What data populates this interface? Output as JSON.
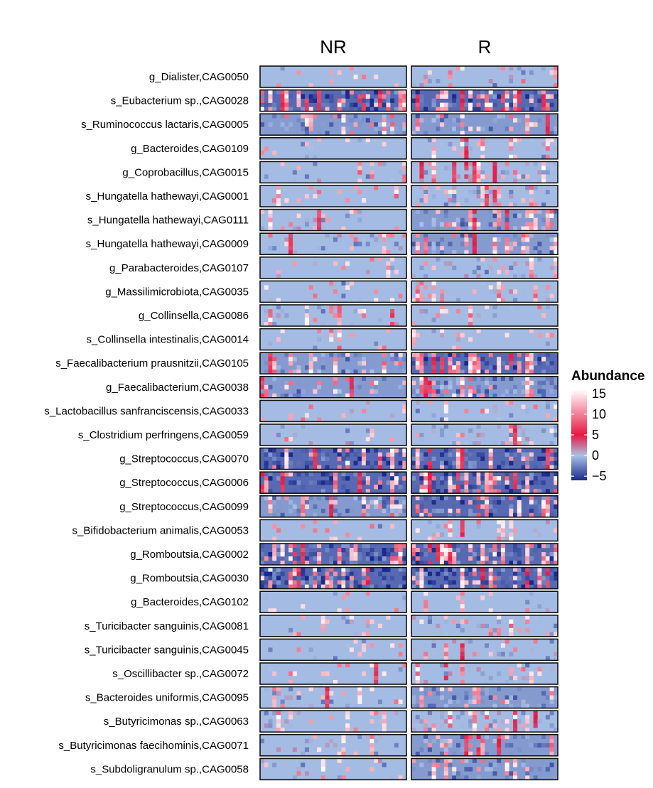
{
  "chart_data": {
    "type": "heatmap",
    "groups": [
      "NR",
      "R"
    ],
    "rows": [
      "g_Dialister,CAG0050",
      "s_Eubacterium sp.,CAG0028",
      "s_Ruminococcus lactaris,CAG0005",
      "g_Bacteroides,CAG0109",
      "g_Coprobacillus,CAG0015",
      "s_Hungatella hathewayi,CAG0001",
      "s_Hungatella hathewayi,CAG0111",
      "s_Hungatella hathewayi,CAG0009",
      "g_Parabacteroides,CAG0107",
      "g_Massilimicrobiota,CAG0035",
      "g_Collinsella,CAG0086",
      "s_Collinsella intestinalis,CAG0014",
      "s_Faecalibacterium prausnitzii,CAG0105",
      "g_Faecalibacterium,CAG0038",
      "s_Lactobacillus sanfranciscensis,CAG0033",
      "s_Clostridium perfringens,CAG0059",
      "g_Streptococcus,CAG0070",
      "g_Streptococcus,CAG0006",
      "g_Streptococcus,CAG0099",
      "s_Bifidobacterium animalis,CAG0053",
      "g_Romboutsia,CAG0002",
      "g_Romboutsia,CAG0030",
      "g_Bacteroides,CAG0102",
      "s_Turicibacter sanguinis,CAG0081",
      "s_Turicibacter sanguinis,CAG0045",
      "s_Oscillibacter sp.,CAG0072",
      "s_Bacteroides uniformis,CAG0095",
      "s_Butyricimonas sp.,CAG0063",
      "s_Butyricimonas faecihominis,CAG0071",
      "s_Subdoligranulum sp.,CAG0058"
    ],
    "row_density": [
      [
        0.02,
        0.12
      ],
      [
        0.7,
        0.65
      ],
      [
        0.4,
        0.45
      ],
      [
        0.03,
        0.18
      ],
      [
        0.1,
        0.3
      ],
      [
        0.05,
        0.3
      ],
      [
        0.15,
        0.4
      ],
      [
        0.2,
        0.45
      ],
      [
        0.06,
        0.25
      ],
      [
        0.03,
        0.2
      ],
      [
        0.15,
        0.05
      ],
      [
        0.08,
        0.02
      ],
      [
        0.45,
        0.6
      ],
      [
        0.4,
        0.55
      ],
      [
        0.02,
        0.1
      ],
      [
        0.05,
        0.25
      ],
      [
        0.7,
        0.75
      ],
      [
        0.6,
        0.7
      ],
      [
        0.5,
        0.6
      ],
      [
        0.03,
        0.2
      ],
      [
        0.85,
        0.8
      ],
      [
        0.8,
        0.75
      ],
      [
        0.02,
        0.06
      ],
      [
        0.04,
        0.25
      ],
      [
        0.04,
        0.25
      ],
      [
        0.03,
        0.2
      ],
      [
        0.15,
        0.45
      ],
      [
        0.1,
        0.35
      ],
      [
        0.15,
        0.45
      ],
      [
        0.12,
        0.4
      ]
    ],
    "color_scale": {
      "title": "Abundance",
      "ticks": [
        15,
        10,
        5,
        0,
        -5
      ],
      "range": [
        -6,
        16
      ],
      "stops": [
        {
          "value": -6,
          "color": "#1a2a8c"
        },
        {
          "value": 0,
          "color": "#a9c1e6"
        },
        {
          "value": 5,
          "color": "#e8173f"
        },
        {
          "value": 16,
          "color": "#ffffff"
        }
      ]
    }
  }
}
